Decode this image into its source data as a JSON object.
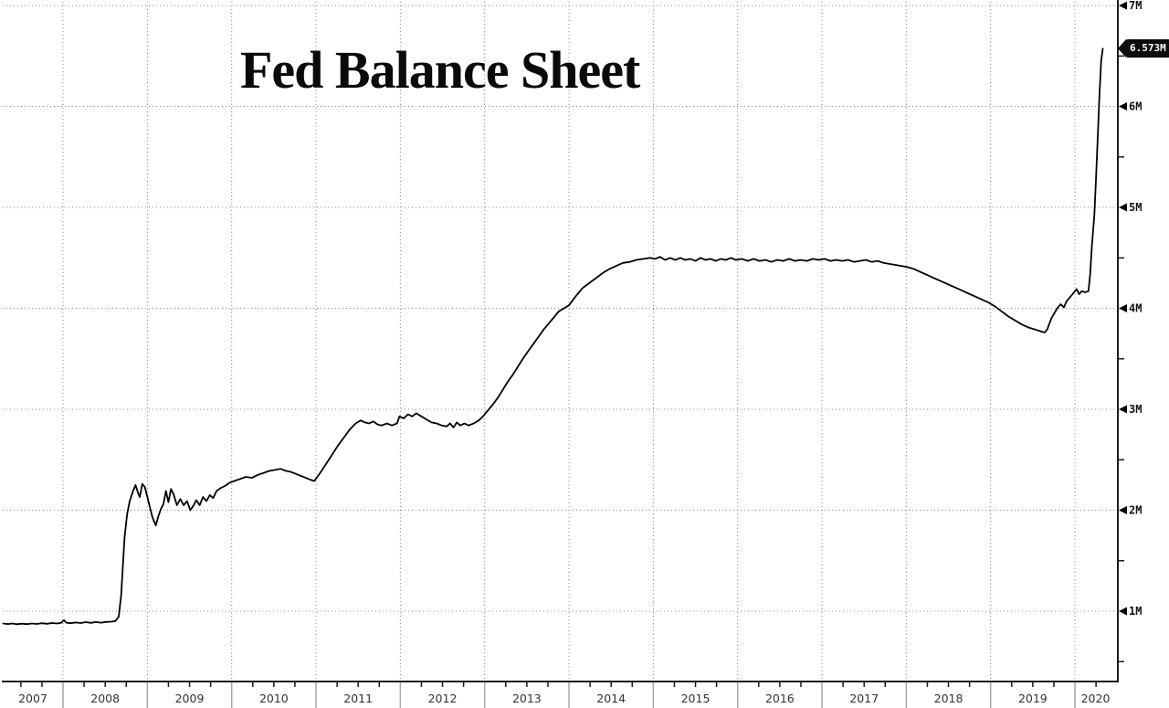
{
  "title": "Fed Balance Sheet",
  "last_value_label": "6.573M",
  "colors": {
    "background": "#ffffff",
    "line": "#000000",
    "grid": "#888888",
    "axis": "#1c1c1c",
    "year_separator": "#a6a6a6",
    "tick_label": "#111111",
    "year_label": "#333333",
    "tag_bg": "#0d0d0d",
    "tag_text": "#ffffff"
  },
  "chart_data": {
    "type": "line",
    "title": "Fed Balance Sheet",
    "legend_position": "none",
    "grid": "dotted",
    "x_axis": {
      "tick_years": [
        2007,
        2008,
        2009,
        2010,
        2011,
        2012,
        2013,
        2014,
        2015,
        2016,
        2017,
        2018,
        2019,
        2020
      ],
      "minor_tick_step_years": 0.25,
      "range": [
        2007.285,
        2020.487
      ]
    },
    "y_axis": {
      "side": "right",
      "tick_values": [
        1,
        2,
        3,
        4,
        5,
        6,
        7
      ],
      "tick_labels": [
        "1M",
        "2M",
        "3M",
        "4M",
        "5M",
        "6M",
        "7M"
      ],
      "minor_tick_step": 0.5,
      "range": [
        0.312,
        7.055
      ]
    },
    "last_value": 6.573,
    "last_value_label": "6.573M",
    "series": [
      {
        "name": "fed-balance-sheet",
        "units": "M (USD millions, i.e. trillions)",
        "points": [
          [
            2007.29,
            0.878
          ],
          [
            2007.35,
            0.872
          ],
          [
            2007.4,
            0.878
          ],
          [
            2007.45,
            0.87
          ],
          [
            2007.51,
            0.876
          ],
          [
            2007.57,
            0.871
          ],
          [
            2007.63,
            0.878
          ],
          [
            2007.69,
            0.873
          ],
          [
            2007.75,
            0.88
          ],
          [
            2007.81,
            0.875
          ],
          [
            2007.87,
            0.882
          ],
          [
            2007.93,
            0.878
          ],
          [
            2007.98,
            0.886
          ],
          [
            2008.01,
            0.912
          ],
          [
            2008.04,
            0.886
          ],
          [
            2008.09,
            0.88
          ],
          [
            2008.15,
            0.888
          ],
          [
            2008.21,
            0.882
          ],
          [
            2008.27,
            0.891
          ],
          [
            2008.33,
            0.884
          ],
          [
            2008.39,
            0.892
          ],
          [
            2008.45,
            0.886
          ],
          [
            2008.51,
            0.893
          ],
          [
            2008.57,
            0.896
          ],
          [
            2008.62,
            0.901
          ],
          [
            2008.66,
            0.946
          ],
          [
            2008.69,
            1.16
          ],
          [
            2008.71,
            1.46
          ],
          [
            2008.73,
            1.73
          ],
          [
            2008.76,
            1.96
          ],
          [
            2008.79,
            2.09
          ],
          [
            2008.83,
            2.19
          ],
          [
            2008.86,
            2.25
          ],
          [
            2008.89,
            2.17
          ],
          [
            2008.91,
            2.13
          ],
          [
            2008.94,
            2.26
          ],
          [
            2008.97,
            2.23
          ],
          [
            2009.0,
            2.13
          ],
          [
            2009.03,
            2.03
          ],
          [
            2009.06,
            1.93
          ],
          [
            2009.1,
            1.85
          ],
          [
            2009.13,
            1.94
          ],
          [
            2009.16,
            2.01
          ],
          [
            2009.19,
            2.06
          ],
          [
            2009.22,
            2.19
          ],
          [
            2009.25,
            2.08
          ],
          [
            2009.28,
            2.21
          ],
          [
            2009.31,
            2.16
          ],
          [
            2009.35,
            2.05
          ],
          [
            2009.39,
            2.11
          ],
          [
            2009.43,
            2.05
          ],
          [
            2009.47,
            2.09
          ],
          [
            2009.51,
            2.0
          ],
          [
            2009.55,
            2.05
          ],
          [
            2009.58,
            2.1
          ],
          [
            2009.62,
            2.05
          ],
          [
            2009.66,
            2.13
          ],
          [
            2009.7,
            2.09
          ],
          [
            2009.74,
            2.15
          ],
          [
            2009.78,
            2.12
          ],
          [
            2009.82,
            2.19
          ],
          [
            2009.87,
            2.22
          ],
          [
            2009.92,
            2.24
          ],
          [
            2009.97,
            2.27
          ],
          [
            2010.03,
            2.29
          ],
          [
            2010.1,
            2.31
          ],
          [
            2010.17,
            2.33
          ],
          [
            2010.24,
            2.32
          ],
          [
            2010.31,
            2.35
          ],
          [
            2010.38,
            2.37
          ],
          [
            2010.45,
            2.39
          ],
          [
            2010.52,
            2.4
          ],
          [
            2010.58,
            2.41
          ],
          [
            2010.64,
            2.39
          ],
          [
            2010.7,
            2.38
          ],
          [
            2010.76,
            2.36
          ],
          [
            2010.82,
            2.34
          ],
          [
            2010.88,
            2.32
          ],
          [
            2010.94,
            2.3
          ],
          [
            2010.98,
            2.29
          ],
          [
            2011.05,
            2.37
          ],
          [
            2011.12,
            2.46
          ],
          [
            2011.19,
            2.55
          ],
          [
            2011.26,
            2.64
          ],
          [
            2011.33,
            2.72
          ],
          [
            2011.4,
            2.8
          ],
          [
            2011.47,
            2.86
          ],
          [
            2011.53,
            2.89
          ],
          [
            2011.58,
            2.87
          ],
          [
            2011.63,
            2.86
          ],
          [
            2011.68,
            2.88
          ],
          [
            2011.73,
            2.85
          ],
          [
            2011.78,
            2.84
          ],
          [
            2011.84,
            2.86
          ],
          [
            2011.9,
            2.84
          ],
          [
            2011.96,
            2.86
          ],
          [
            2011.99,
            2.93
          ],
          [
            2012.04,
            2.91
          ],
          [
            2012.09,
            2.95
          ],
          [
            2012.14,
            2.93
          ],
          [
            2012.19,
            2.96
          ],
          [
            2012.25,
            2.93
          ],
          [
            2012.31,
            2.9
          ],
          [
            2012.37,
            2.87
          ],
          [
            2012.43,
            2.86
          ],
          [
            2012.49,
            2.84
          ],
          [
            2012.55,
            2.83
          ],
          [
            2012.59,
            2.86
          ],
          [
            2012.63,
            2.82
          ],
          [
            2012.67,
            2.87
          ],
          [
            2012.71,
            2.84
          ],
          [
            2012.76,
            2.86
          ],
          [
            2012.81,
            2.84
          ],
          [
            2012.87,
            2.86
          ],
          [
            2012.93,
            2.89
          ],
          [
            2012.98,
            2.93
          ],
          [
            2013.04,
            2.99
          ],
          [
            2013.1,
            3.05
          ],
          [
            2013.16,
            3.12
          ],
          [
            2013.22,
            3.2
          ],
          [
            2013.28,
            3.28
          ],
          [
            2013.34,
            3.35
          ],
          [
            2013.4,
            3.43
          ],
          [
            2013.46,
            3.51
          ],
          [
            2013.52,
            3.58
          ],
          [
            2013.58,
            3.65
          ],
          [
            2013.64,
            3.72
          ],
          [
            2013.7,
            3.79
          ],
          [
            2013.76,
            3.85
          ],
          [
            2013.82,
            3.91
          ],
          [
            2013.88,
            3.97
          ],
          [
            2013.94,
            4.0
          ],
          [
            2014.0,
            4.03
          ],
          [
            2014.08,
            4.12
          ],
          [
            2014.16,
            4.2
          ],
          [
            2014.24,
            4.25
          ],
          [
            2014.32,
            4.3
          ],
          [
            2014.4,
            4.35
          ],
          [
            2014.48,
            4.39
          ],
          [
            2014.56,
            4.42
          ],
          [
            2014.64,
            4.45
          ],
          [
            2014.72,
            4.46
          ],
          [
            2014.8,
            4.48
          ],
          [
            2014.88,
            4.49
          ],
          [
            2014.96,
            4.5
          ],
          [
            2015.02,
            4.49
          ],
          [
            2015.08,
            4.51
          ],
          [
            2015.14,
            4.48
          ],
          [
            2015.2,
            4.5
          ],
          [
            2015.26,
            4.48
          ],
          [
            2015.32,
            4.5
          ],
          [
            2015.38,
            4.48
          ],
          [
            2015.44,
            4.49
          ],
          [
            2015.5,
            4.47
          ],
          [
            2015.56,
            4.5
          ],
          [
            2015.62,
            4.48
          ],
          [
            2015.68,
            4.49
          ],
          [
            2015.74,
            4.47
          ],
          [
            2015.8,
            4.49
          ],
          [
            2015.86,
            4.48
          ],
          [
            2015.92,
            4.5
          ],
          [
            2015.98,
            4.48
          ],
          [
            2016.05,
            4.49
          ],
          [
            2016.12,
            4.47
          ],
          [
            2016.19,
            4.49
          ],
          [
            2016.26,
            4.47
          ],
          [
            2016.33,
            4.48
          ],
          [
            2016.4,
            4.46
          ],
          [
            2016.47,
            4.48
          ],
          [
            2016.54,
            4.47
          ],
          [
            2016.61,
            4.49
          ],
          [
            2016.68,
            4.47
          ],
          [
            2016.75,
            4.48
          ],
          [
            2016.82,
            4.47
          ],
          [
            2016.89,
            4.49
          ],
          [
            2016.96,
            4.48
          ],
          [
            2017.03,
            4.49
          ],
          [
            2017.1,
            4.47
          ],
          [
            2017.17,
            4.48
          ],
          [
            2017.24,
            4.47
          ],
          [
            2017.31,
            4.48
          ],
          [
            2017.38,
            4.46
          ],
          [
            2017.45,
            4.47
          ],
          [
            2017.52,
            4.48
          ],
          [
            2017.59,
            4.46
          ],
          [
            2017.66,
            4.47
          ],
          [
            2017.73,
            4.45
          ],
          [
            2017.8,
            4.44
          ],
          [
            2017.87,
            4.43
          ],
          [
            2017.94,
            4.42
          ],
          [
            2018.01,
            4.41
          ],
          [
            2018.09,
            4.39
          ],
          [
            2018.17,
            4.36
          ],
          [
            2018.25,
            4.33
          ],
          [
            2018.33,
            4.3
          ],
          [
            2018.41,
            4.27
          ],
          [
            2018.49,
            4.24
          ],
          [
            2018.57,
            4.21
          ],
          [
            2018.65,
            4.18
          ],
          [
            2018.73,
            4.15
          ],
          [
            2018.81,
            4.12
          ],
          [
            2018.89,
            4.09
          ],
          [
            2018.97,
            4.06
          ],
          [
            2019.05,
            4.02
          ],
          [
            2019.13,
            3.97
          ],
          [
            2019.21,
            3.92
          ],
          [
            2019.29,
            3.88
          ],
          [
            2019.37,
            3.84
          ],
          [
            2019.45,
            3.81
          ],
          [
            2019.53,
            3.79
          ],
          [
            2019.6,
            3.77
          ],
          [
            2019.64,
            3.76
          ],
          [
            2019.67,
            3.79
          ],
          [
            2019.72,
            3.9
          ],
          [
            2019.76,
            3.96
          ],
          [
            2019.79,
            4.0
          ],
          [
            2019.83,
            4.04
          ],
          [
            2019.87,
            4.01
          ],
          [
            2019.9,
            4.07
          ],
          [
            2019.94,
            4.11
          ],
          [
            2019.99,
            4.16
          ],
          [
            2020.02,
            4.19
          ],
          [
            2020.05,
            4.14
          ],
          [
            2020.08,
            4.17
          ],
          [
            2020.12,
            4.16
          ],
          [
            2020.16,
            4.17
          ],
          [
            2020.18,
            4.34
          ],
          [
            2020.2,
            4.61
          ],
          [
            2020.23,
            4.93
          ],
          [
            2020.25,
            5.29
          ],
          [
            2020.27,
            5.7
          ],
          [
            2020.29,
            6.1
          ],
          [
            2020.31,
            6.45
          ],
          [
            2020.33,
            6.573
          ]
        ]
      }
    ]
  }
}
